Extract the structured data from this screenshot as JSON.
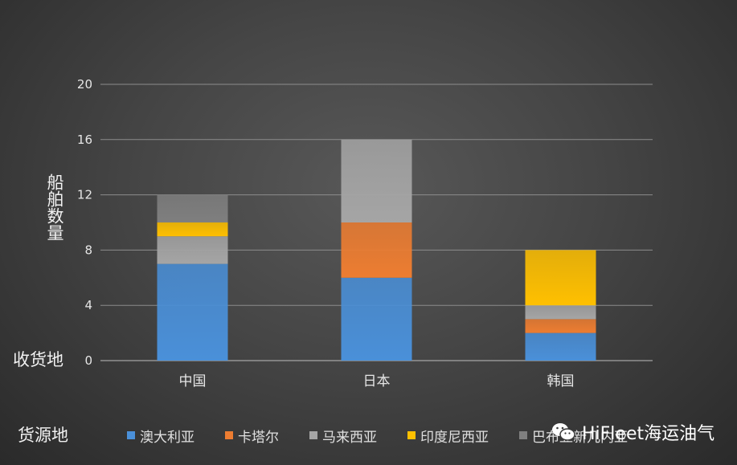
{
  "chart_data": {
    "type": "bar",
    "stacked": true,
    "categories": [
      "中国",
      "日本",
      "韩国"
    ],
    "series": [
      {
        "name": "澳大利亚",
        "values": [
          7,
          6,
          2
        ],
        "color": "#4a90d9"
      },
      {
        "name": "卡塔尔",
        "values": [
          0,
          4,
          1
        ],
        "color": "#ed7d31"
      },
      {
        "name": "马来西亚",
        "values": [
          2,
          6,
          1
        ],
        "color": "#a5a5a5"
      },
      {
        "name": "印度尼西亚",
        "values": [
          1,
          0,
          4
        ],
        "color": "#ffc000"
      },
      {
        "name": "巴布亚新几内亚",
        "values": [
          2,
          0,
          0
        ],
        "color": "#7f7f7f"
      }
    ],
    "yticks": [
      0,
      4,
      8,
      12,
      16,
      20
    ],
    "ylim": [
      0,
      20
    ],
    "ylabel": "船舶数量",
    "xlabel": "收货地",
    "legend_title": "货源地",
    "legend_position": "bottom",
    "grid": true
  },
  "watermark": {
    "text": "HiFleet海运油气",
    "icon": "wechat-icon"
  }
}
